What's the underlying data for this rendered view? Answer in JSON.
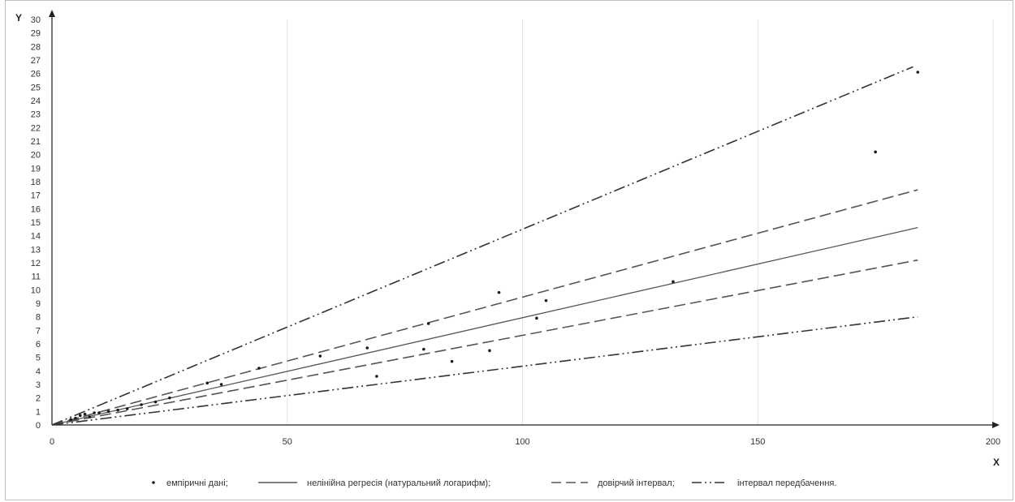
{
  "chart_data": {
    "type": "line",
    "title": "",
    "xlabel": "X",
    "ylabel": "Y",
    "xlim": [
      0,
      200
    ],
    "ylim": [
      0,
      30
    ],
    "x_ticks": [
      0,
      50,
      100,
      150,
      200
    ],
    "y_ticks": [
      0,
      1,
      2,
      3,
      4,
      5,
      6,
      7,
      8,
      9,
      10,
      11,
      12,
      13,
      14,
      15,
      16,
      17,
      18,
      19,
      20,
      21,
      22,
      23,
      24,
      25,
      26,
      27,
      28,
      29,
      30
    ],
    "grid": "vertical",
    "legend_position": "bottom",
    "series": [
      {
        "name": "емпіричні дані;",
        "kind": "scatter",
        "color": "#1a1a1a",
        "points": [
          [
            4,
            0.4
          ],
          [
            5,
            0.5
          ],
          [
            6,
            0.7
          ],
          [
            7,
            0.8
          ],
          [
            8,
            0.6
          ],
          [
            9,
            0.9
          ],
          [
            10,
            0.9
          ],
          [
            12,
            1.0
          ],
          [
            14,
            1.1
          ],
          [
            16,
            1.2
          ],
          [
            19,
            1.5
          ],
          [
            22,
            1.7
          ],
          [
            25,
            2.0
          ],
          [
            33,
            3.1
          ],
          [
            36,
            3.0
          ],
          [
            44,
            4.2
          ],
          [
            57,
            5.1
          ],
          [
            67,
            5.7
          ],
          [
            69,
            3.6
          ],
          [
            79,
            5.6
          ],
          [
            80,
            7.5
          ],
          [
            85,
            4.7
          ],
          [
            93,
            5.5
          ],
          [
            95,
            9.8
          ],
          [
            103,
            7.9
          ],
          [
            105,
            9.2
          ],
          [
            132,
            10.6
          ],
          [
            175,
            20.2
          ],
          [
            184,
            26.1
          ]
        ]
      },
      {
        "name": "нелінійна регресія (натуральний логарифм);",
        "kind": "line",
        "style": "solid",
        "color": "#555555",
        "x": [
          0,
          184
        ],
        "y": [
          0,
          14.6
        ]
      },
      {
        "name": "довірчий інтервал;",
        "kind": "line",
        "style": "dashed",
        "color": "#555555",
        "lines": [
          {
            "x": [
              0,
              184
            ],
            "y": [
              0,
              17.4
            ]
          },
          {
            "x": [
              0,
              184
            ],
            "y": [
              0,
              12.2
            ]
          }
        ]
      },
      {
        "name": "інтервал передбачення.",
        "kind": "line",
        "style": "dash-dot-dot",
        "color": "#333333",
        "lines": [
          {
            "x": [
              0,
              183
            ],
            "y": [
              0,
              26.5
            ]
          },
          {
            "x": [
              0,
              184
            ],
            "y": [
              0,
              8.0
            ]
          }
        ]
      }
    ]
  }
}
